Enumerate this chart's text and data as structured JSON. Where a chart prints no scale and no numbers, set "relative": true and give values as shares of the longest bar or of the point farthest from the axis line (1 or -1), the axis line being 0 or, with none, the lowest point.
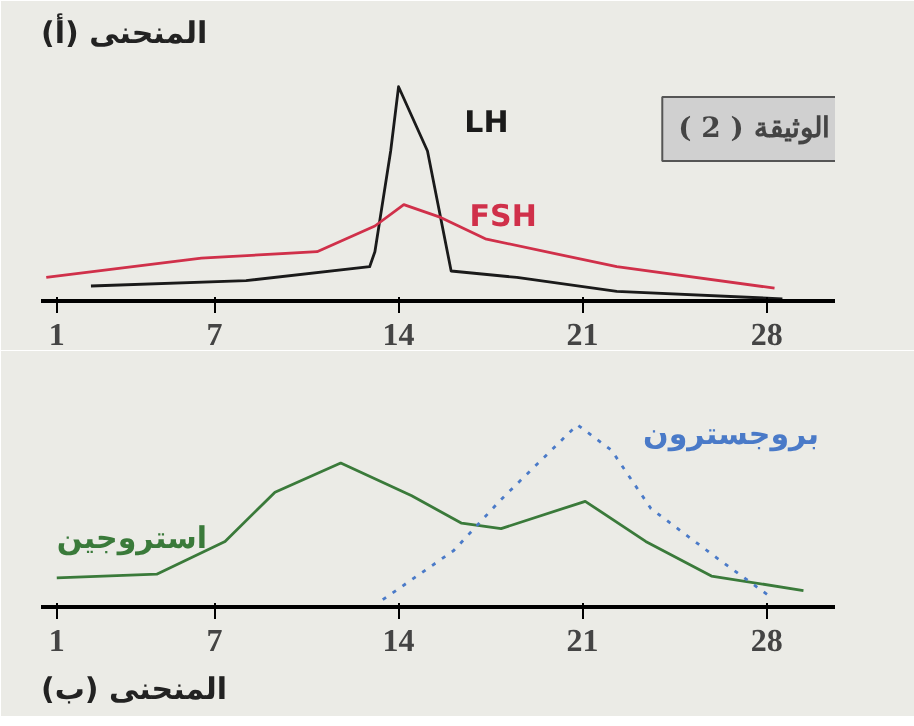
{
  "chart_data": [
    {
      "type": "line",
      "title": "المنحنى (أ)",
      "relative": true,
      "xlim": [
        0.4,
        30.6
      ],
      "xticks": [
        1,
        7,
        14,
        21,
        28
      ],
      "grid": false,
      "marker": "none",
      "annotations": [
        "الوثيقة ( 2 )"
      ],
      "series": [
        {
          "name": "LH",
          "color": "#1a1a1a",
          "x": [
            2.3,
            8.2,
            12.9,
            13.1,
            13.7,
            14.0,
            15.1,
            16.0,
            18.5,
            22.3,
            28.6
          ],
          "values": [
            0.07,
            0.095,
            0.16,
            0.23,
            0.7,
            1.0,
            0.7,
            0.14,
            0.11,
            0.045,
            0.01
          ]
        },
        {
          "name": "FSH",
          "color": "#d0304a",
          "x": [
            0.6,
            6.5,
            10.9,
            13.1,
            14.2,
            15.6,
            17.3,
            22.3,
            28.3
          ],
          "values": [
            0.11,
            0.2,
            0.23,
            0.35,
            0.45,
            0.39,
            0.29,
            0.16,
            0.06
          ]
        }
      ]
    },
    {
      "type": "line",
      "title": "المنحنى (ب)",
      "relative": true,
      "xlim": [
        0.4,
        30.6
      ],
      "xticks": [
        1,
        7,
        14,
        21,
        28
      ],
      "grid": false,
      "marker": "none",
      "series": [
        {
          "name": "استروجين",
          "color": "#3a7a3a",
          "x": [
            1,
            4.8,
            7.4,
            9.3,
            11.8,
            14.5,
            16.4,
            17.9,
            21.1,
            23.4,
            25.9,
            29.4
          ],
          "values": [
            0.16,
            0.18,
            0.36,
            0.63,
            0.79,
            0.61,
            0.46,
            0.43,
            0.58,
            0.36,
            0.17,
            0.09
          ]
        },
        {
          "name": "بروجسترون",
          "color": "#4a7ac8",
          "line_style": "dotted",
          "x": [
            13.4,
            16.1,
            17.9,
            20.8,
            22.1,
            23.6,
            26.1,
            28.2
          ],
          "values": [
            0.04,
            0.31,
            0.59,
            1.0,
            0.86,
            0.54,
            0.27,
            0.05
          ]
        }
      ]
    }
  ]
}
